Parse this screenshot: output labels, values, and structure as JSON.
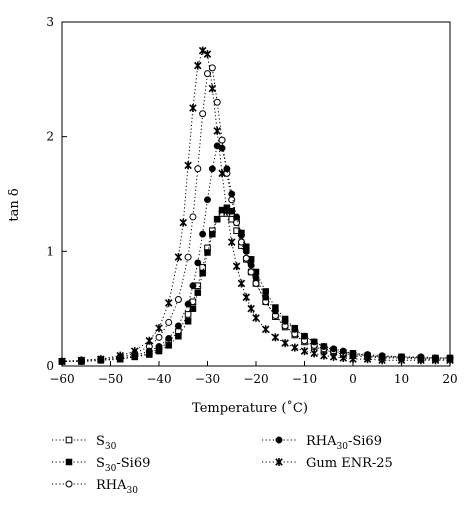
{
  "chart_data": {
    "type": "scatter",
    "xlabel": "Temperature (˚C)",
    "ylabel": "tan δ",
    "xlim": [
      -60,
      20
    ],
    "ylim": [
      0,
      3
    ],
    "xticks": [
      "−60",
      "−50",
      "−40",
      "−30",
      "−20",
      "−10",
      "0",
      "10",
      "20"
    ],
    "yticks": [
      "0",
      "1",
      "2",
      "3"
    ],
    "grid": false,
    "legend_position": "bottom, two columns",
    "series": [
      {
        "name": "S30",
        "legend_main": "S",
        "legend_sub": "30",
        "legend_suffix": "",
        "marker": "open-square",
        "x": [
          -60,
          -56,
          -52,
          -48,
          -45,
          -42,
          -40,
          -38,
          -36,
          -34,
          -33,
          -32,
          -31,
          -30,
          -29,
          -28,
          -27,
          -26,
          -25,
          -24,
          -23,
          -22,
          -21,
          -20,
          -18,
          -16,
          -14,
          -12,
          -10,
          -8,
          -6,
          -4,
          -2,
          0,
          3,
          6,
          10,
          14,
          17,
          20
        ],
        "y": [
          0.04,
          0.04,
          0.05,
          0.06,
          0.08,
          0.11,
          0.15,
          0.21,
          0.3,
          0.45,
          0.56,
          0.7,
          0.86,
          1.03,
          1.18,
          1.28,
          1.33,
          1.33,
          1.28,
          1.18,
          1.05,
          0.93,
          0.82,
          0.72,
          0.56,
          0.43,
          0.34,
          0.27,
          0.21,
          0.17,
          0.14,
          0.12,
          0.1,
          0.09,
          0.08,
          0.07,
          0.07,
          0.06,
          0.06,
          0.06
        ]
      },
      {
        "name": "S30-Si69",
        "legend_main": "S",
        "legend_sub": "30",
        "legend_suffix": "-Si69",
        "marker": "filled-square",
        "x": [
          -60,
          -56,
          -52,
          -48,
          -45,
          -42,
          -40,
          -38,
          -36,
          -34,
          -33,
          -32,
          -31,
          -30,
          -29,
          -28,
          -27,
          -26,
          -25,
          -24,
          -23,
          -22,
          -21,
          -20,
          -18,
          -16,
          -14,
          -12,
          -10,
          -8,
          -6,
          -4,
          -2,
          0,
          3,
          6,
          10,
          14,
          17,
          20
        ],
        "y": [
          0.04,
          0.04,
          0.05,
          0.06,
          0.08,
          0.1,
          0.13,
          0.18,
          0.26,
          0.39,
          0.5,
          0.64,
          0.81,
          0.99,
          1.15,
          1.28,
          1.36,
          1.38,
          1.35,
          1.27,
          1.16,
          1.04,
          0.93,
          0.82,
          0.65,
          0.51,
          0.41,
          0.33,
          0.26,
          0.21,
          0.17,
          0.14,
          0.12,
          0.11,
          0.09,
          0.08,
          0.08,
          0.07,
          0.07,
          0.07
        ]
      },
      {
        "name": "RHA30",
        "legend_main": "RHA",
        "legend_sub": "30",
        "legend_suffix": "",
        "marker": "open-circle",
        "x": [
          -60,
          -56,
          -52,
          -48,
          -45,
          -42,
          -40,
          -38,
          -36,
          -34,
          -33,
          -32,
          -31,
          -30,
          -29,
          -28,
          -27,
          -26,
          -25,
          -24,
          -23,
          -22,
          -21,
          -20,
          -18,
          -16,
          -14,
          -12,
          -10,
          -8,
          -6,
          -4,
          -2,
          0,
          3,
          6,
          10,
          14,
          17,
          20
        ],
        "y": [
          0.04,
          0.05,
          0.06,
          0.08,
          0.11,
          0.17,
          0.25,
          0.38,
          0.58,
          0.95,
          1.3,
          1.72,
          2.2,
          2.55,
          2.6,
          2.3,
          1.97,
          1.68,
          1.45,
          1.25,
          1.08,
          0.94,
          0.82,
          0.72,
          0.56,
          0.44,
          0.35,
          0.28,
          0.22,
          0.18,
          0.15,
          0.13,
          0.11,
          0.1,
          0.09,
          0.08,
          0.08,
          0.07,
          0.07,
          0.07
        ]
      },
      {
        "name": "RHA30-Si69",
        "legend_main": "RHA",
        "legend_sub": "30",
        "legend_suffix": "-Si69",
        "marker": "filled-circle",
        "x": [
          -60,
          -56,
          -52,
          -48,
          -45,
          -42,
          -40,
          -38,
          -36,
          -34,
          -33,
          -32,
          -31,
          -30,
          -29,
          -28,
          -27,
          -26,
          -25,
          -24,
          -23,
          -22,
          -21,
          -20,
          -18,
          -16,
          -14,
          -12,
          -10,
          -8,
          -6,
          -4,
          -2,
          0,
          3,
          6,
          10,
          14,
          17,
          20
        ],
        "y": [
          0.04,
          0.04,
          0.05,
          0.07,
          0.09,
          0.13,
          0.17,
          0.24,
          0.35,
          0.54,
          0.7,
          0.9,
          1.15,
          1.45,
          1.72,
          1.92,
          1.9,
          1.72,
          1.5,
          1.3,
          1.14,
          1.0,
          0.88,
          0.77,
          0.6,
          0.48,
          0.39,
          0.32,
          0.26,
          0.21,
          0.17,
          0.15,
          0.13,
          0.11,
          0.1,
          0.09,
          0.08,
          0.08,
          0.07,
          0.07
        ]
      },
      {
        "name": "Gum ENR-25",
        "legend_main": "Gum ENR-25",
        "legend_sub": "",
        "legend_suffix": "",
        "marker": "star",
        "x": [
          -60,
          -56,
          -52,
          -48,
          -45,
          -42,
          -40,
          -38,
          -36,
          -35,
          -34,
          -33,
          -32,
          -31,
          -30,
          -29,
          -28,
          -27,
          -26,
          -25,
          -24,
          -23,
          -22,
          -21,
          -20,
          -18,
          -16,
          -14,
          -12,
          -10,
          -8,
          -6,
          -4,
          -2,
          0,
          3,
          6,
          10,
          14,
          17,
          20
        ],
        "y": [
          0.04,
          0.05,
          0.06,
          0.09,
          0.13,
          0.22,
          0.33,
          0.55,
          0.95,
          1.25,
          1.75,
          2.25,
          2.62,
          2.75,
          2.72,
          2.42,
          2.05,
          1.68,
          1.35,
          1.08,
          0.87,
          0.72,
          0.6,
          0.5,
          0.42,
          0.32,
          0.25,
          0.2,
          0.16,
          0.13,
          0.11,
          0.09,
          0.08,
          0.07,
          0.06,
          0.06,
          0.05,
          0.05,
          0.05,
          0.05,
          0.05
        ]
      }
    ]
  }
}
